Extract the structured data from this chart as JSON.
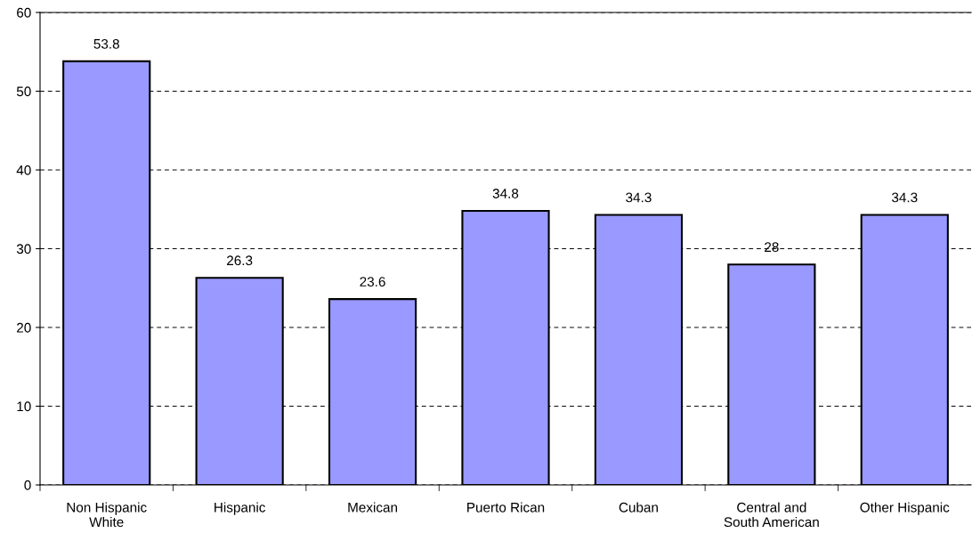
{
  "chart_data": {
    "type": "bar",
    "categories": [
      "Non Hispanic\nWhite",
      "Hispanic",
      "Mexican",
      "Puerto Rican",
      "Cuban",
      "Central and\nSouth American",
      "Other Hispanic"
    ],
    "values": [
      53.8,
      26.3,
      23.6,
      34.8,
      34.3,
      28,
      34.3
    ],
    "color": "#9999ff",
    "ylim": [
      0,
      60
    ],
    "yticks": [
      0,
      10,
      20,
      30,
      40,
      50,
      60
    ],
    "grid": "y",
    "data_labels": true
  }
}
